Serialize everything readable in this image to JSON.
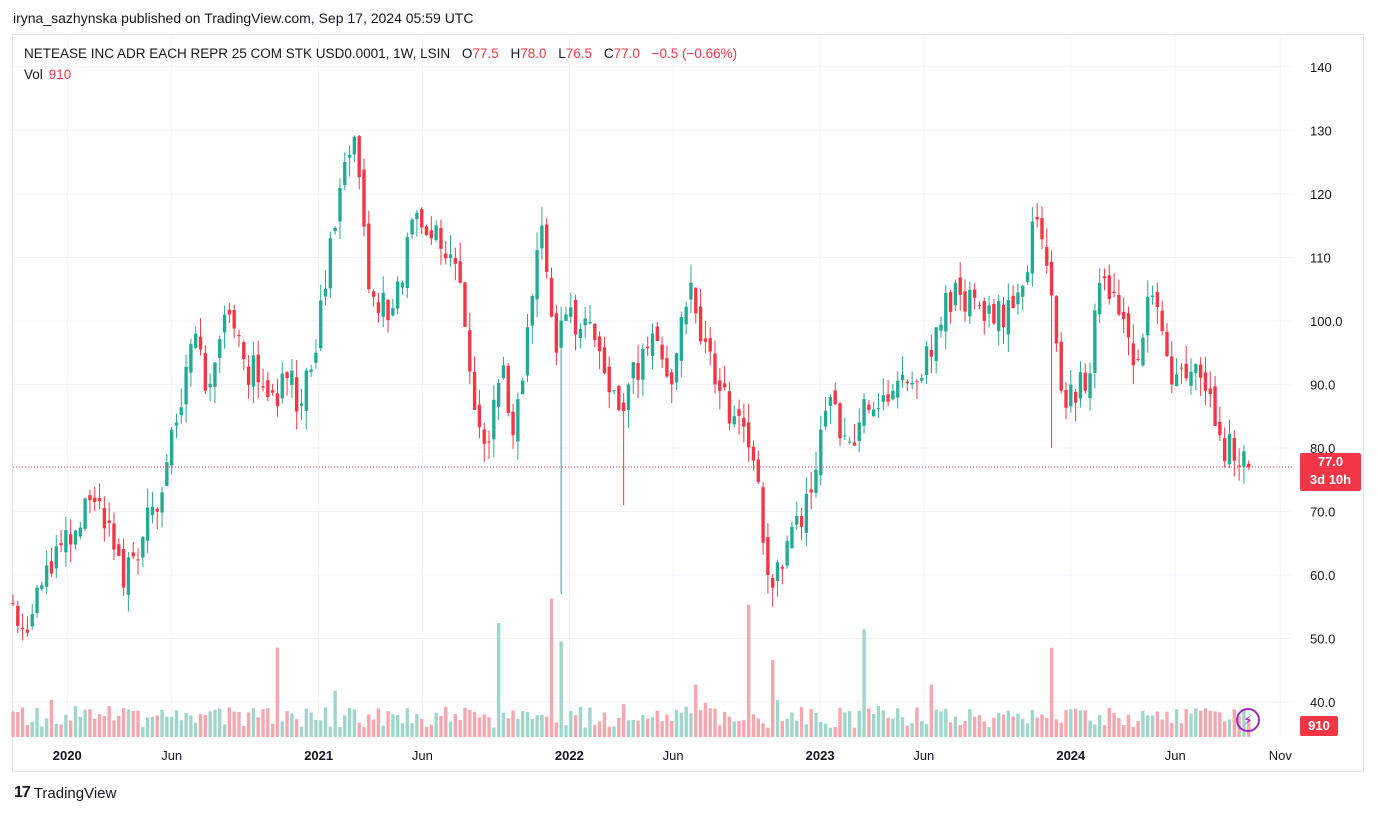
{
  "publisher_line": "iryna_sazhynska published on TradingView.com, Sep 17, 2024 05:59 UTC",
  "legend": {
    "symbol": "NETEASE INC ADR EACH REPR 25 COM STK USD0.0001, 1W, LSIN",
    "o_label": "O",
    "o_value": "77.5",
    "h_label": "H",
    "h_value": "78.0",
    "l_label": "L",
    "l_value": "76.5",
    "c_label": "C",
    "c_value": "77.0",
    "change": "−0.5 (−0.66%)",
    "vol_label": "Vol",
    "vol_value": "910"
  },
  "price_tag": {
    "price": "77.0",
    "countdown": "3d 10h"
  },
  "volume_tag": "910",
  "brand": {
    "logo": "17",
    "name": "TradingView"
  },
  "colors": {
    "up": "#22ab94",
    "down": "#f23645",
    "up_vol": "#9fd6cc",
    "down_vol": "#f5a6ae",
    "grid": "#f0f3fa"
  },
  "chart_data": {
    "type": "candlestick",
    "title": "NETEASE INC ADR EACH REPR 25 COM STK USD0.0001, 1W, LSIN",
    "xlabel": "",
    "ylabel": "",
    "y_ticks": [
      140,
      130,
      120,
      110,
      100.0,
      90.0,
      80.0,
      70.0,
      60.0,
      50.0,
      40.0
    ],
    "y_tick_labels": [
      "140",
      "130",
      "120",
      "110",
      "100.0",
      "90.0",
      "80.0",
      "70.0",
      "60.0",
      "50.0",
      "40.0"
    ],
    "ylim": [
      34.5,
      145
    ],
    "x_range": [
      "2019-10-14",
      "2024-11-18"
    ],
    "x_ticks": [
      {
        "label": "2020",
        "date": "2020-01-01",
        "bold": true
      },
      {
        "label": "Jun",
        "date": "2020-06-01",
        "bold": false
      },
      {
        "label": "2021",
        "date": "2021-01-01",
        "bold": true
      },
      {
        "label": "Jun",
        "date": "2021-06-01",
        "bold": false
      },
      {
        "label": "2022",
        "date": "2022-01-01",
        "bold": true
      },
      {
        "label": "Jun",
        "date": "2022-06-01",
        "bold": false
      },
      {
        "label": "2023",
        "date": "2023-01-01",
        "bold": true
      },
      {
        "label": "Jun",
        "date": "2023-06-01",
        "bold": false
      },
      {
        "label": "2024",
        "date": "2024-01-01",
        "bold": true
      },
      {
        "label": "Jun",
        "date": "2024-06-01",
        "bold": false
      },
      {
        "label": "Nov",
        "date": "2024-11-01",
        "bold": false
      }
    ],
    "last_price": 77.0,
    "last_volume": 910,
    "anchors": [
      {
        "date": "2019-10-14",
        "close": 55.5
      },
      {
        "date": "2019-10-28",
        "close": 51.5
      },
      {
        "date": "2019-11-18",
        "close": 58.0
      },
      {
        "date": "2019-12-16",
        "close": 64.5
      },
      {
        "date": "2020-01-13",
        "close": 67.0
      },
      {
        "date": "2020-02-10",
        "close": 71.5
      },
      {
        "date": "2020-03-09",
        "close": 64.0
      },
      {
        "date": "2020-03-23",
        "close": 58.0
      },
      {
        "date": "2020-04-20",
        "close": 66.0
      },
      {
        "date": "2020-05-18",
        "close": 73.0
      },
      {
        "date": "2020-06-08",
        "close": 84.0
      },
      {
        "date": "2020-07-06",
        "close": 98.0
      },
      {
        "date": "2020-07-20",
        "close": 89.0
      },
      {
        "date": "2020-08-24",
        "close": 101.0
      },
      {
        "date": "2020-09-14",
        "close": 94.0
      },
      {
        "date": "2020-10-19",
        "close": 88.0
      },
      {
        "date": "2020-11-16",
        "close": 91.0
      },
      {
        "date": "2020-12-07",
        "close": 87.0
      },
      {
        "date": "2020-12-28",
        "close": 95.0
      },
      {
        "date": "2021-01-18",
        "close": 113.0
      },
      {
        "date": "2021-02-08",
        "close": 125.0
      },
      {
        "date": "2021-02-22",
        "close": 129.0
      },
      {
        "date": "2021-03-15",
        "close": 105.0
      },
      {
        "date": "2021-04-19",
        "close": 102.0
      },
      {
        "date": "2021-05-24",
        "close": 117.0
      },
      {
        "date": "2021-06-14",
        "close": 113.0
      },
      {
        "date": "2021-07-19",
        "close": 109.0
      },
      {
        "date": "2021-08-16",
        "close": 86.0
      },
      {
        "date": "2021-09-06",
        "close": 81.0
      },
      {
        "date": "2021-09-27",
        "close": 93.0
      },
      {
        "date": "2021-10-11",
        "close": 82.0
      },
      {
        "date": "2021-11-01",
        "close": 99.0
      },
      {
        "date": "2021-11-22",
        "close": 115.0
      },
      {
        "date": "2021-12-13",
        "close": 95.0
      },
      {
        "date": "2021-12-27",
        "close": 101.0
      },
      {
        "date": "2022-02-07",
        "close": 97.0
      },
      {
        "date": "2022-03-14",
        "close": 86.0
      },
      {
        "date": "2022-03-28",
        "close": 90.0
      },
      {
        "date": "2022-05-02",
        "close": 98.0
      },
      {
        "date": "2022-05-30",
        "close": 90.0
      },
      {
        "date": "2022-06-27",
        "close": 106.0
      },
      {
        "date": "2022-08-01",
        "close": 90.0
      },
      {
        "date": "2022-08-29",
        "close": 85.0
      },
      {
        "date": "2022-09-26",
        "close": 78.0
      },
      {
        "date": "2022-10-24",
        "close": 58.0
      },
      {
        "date": "2022-11-07",
        "close": 61.0
      },
      {
        "date": "2022-12-19",
        "close": 73.0
      },
      {
        "date": "2023-01-16",
        "close": 88.0
      },
      {
        "date": "2023-02-13",
        "close": 81.0
      },
      {
        "date": "2023-03-13",
        "close": 86.0
      },
      {
        "date": "2023-04-17",
        "close": 89.0
      },
      {
        "date": "2023-05-29",
        "close": 91.0
      },
      {
        "date": "2023-06-19",
        "close": 99.0
      },
      {
        "date": "2023-07-17",
        "close": 106.0
      },
      {
        "date": "2023-08-28",
        "close": 100.0
      },
      {
        "date": "2023-10-09",
        "close": 102.0
      },
      {
        "date": "2023-11-13",
        "close": 116.0
      },
      {
        "date": "2023-12-04",
        "close": 104.0
      },
      {
        "date": "2023-12-18",
        "close": 89.0
      },
      {
        "date": "2024-01-22",
        "close": 89.0
      },
      {
        "date": "2024-02-12",
        "close": 106.0
      },
      {
        "date": "2024-03-11",
        "close": 101.0
      },
      {
        "date": "2024-04-01",
        "close": 93.0
      },
      {
        "date": "2024-04-29",
        "close": 104.0
      },
      {
        "date": "2024-05-27",
        "close": 90.0
      },
      {
        "date": "2024-06-24",
        "close": 92.0
      },
      {
        "date": "2024-07-15",
        "close": 89.0
      },
      {
        "date": "2024-08-05",
        "close": 82.0
      },
      {
        "date": "2024-08-26",
        "close": 78.0
      },
      {
        "date": "2024-09-16",
        "close": 77.0
      }
    ],
    "spikes": [
      {
        "date": "2021-12-20",
        "low": 57.0
      },
      {
        "date": "2022-10-24",
        "low": 55.0
      },
      {
        "date": "2023-12-04",
        "low": 80.0
      },
      {
        "date": "2022-03-21",
        "low": 71.0
      }
    ],
    "volume_spikes": [
      {
        "date": "2020-11-02",
        "volume": 49
      },
      {
        "date": "2021-01-25",
        "volume": 42
      },
      {
        "date": "2021-09-20",
        "volume": 53
      },
      {
        "date": "2021-12-06",
        "volume": 57
      },
      {
        "date": "2021-12-20",
        "volume": 50
      },
      {
        "date": "2022-07-04",
        "volume": 43
      },
      {
        "date": "2022-09-19",
        "volume": 56
      },
      {
        "date": "2022-10-24",
        "volume": 47
      },
      {
        "date": "2023-03-06",
        "volume": 52
      },
      {
        "date": "2023-06-12",
        "volume": 43
      },
      {
        "date": "2023-12-04",
        "volume": 49
      },
      {
        "date": "2024-08-26",
        "volume": 39
      }
    ]
  }
}
